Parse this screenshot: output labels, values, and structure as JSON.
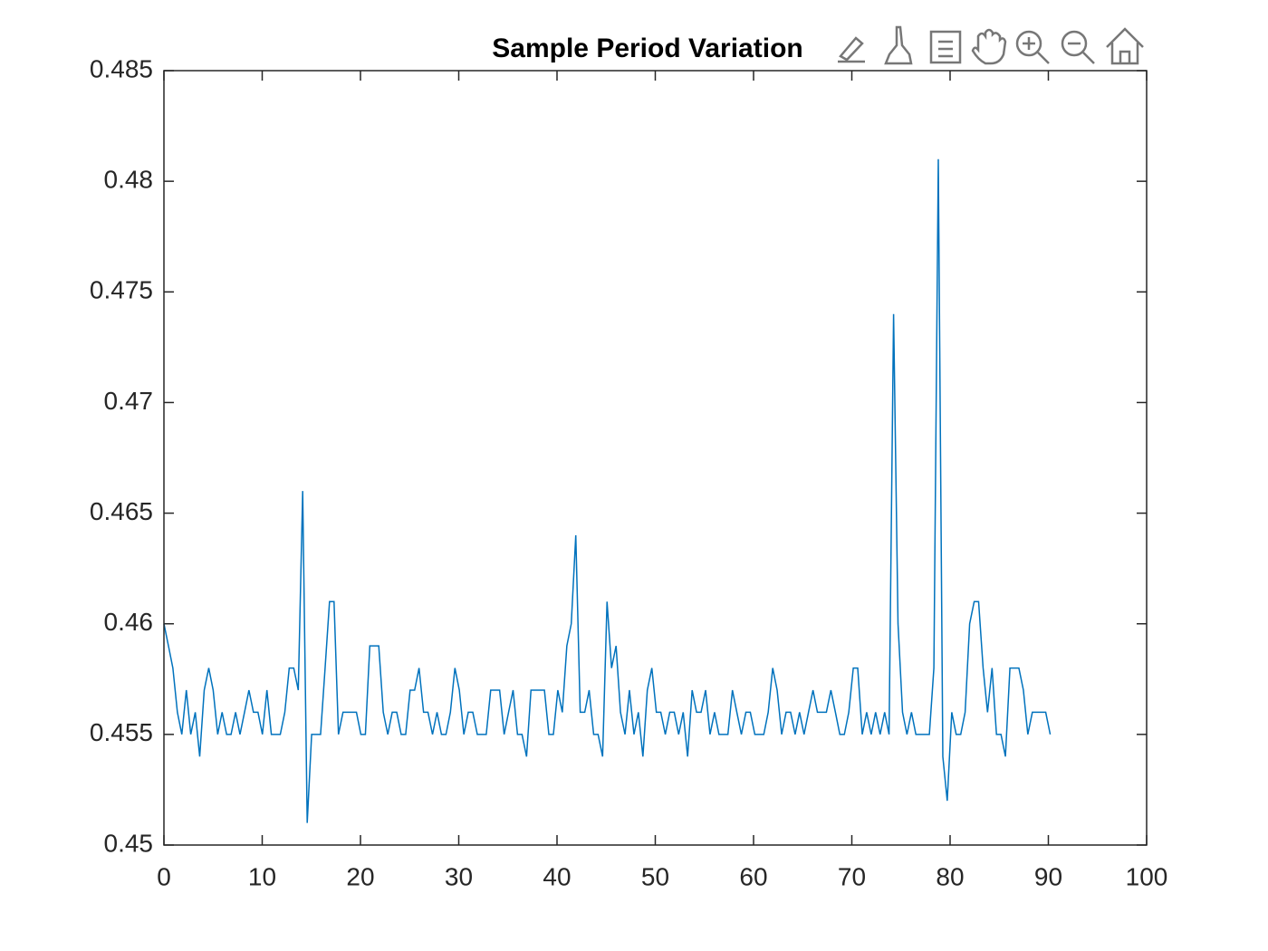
{
  "chart_data": {
    "type": "line",
    "title": "Sample Period Variation",
    "xlim": [
      0,
      100
    ],
    "xticks": [
      0,
      10,
      20,
      30,
      40,
      50,
      60,
      70,
      80,
      90,
      100
    ],
    "ylim": [
      0.45,
      0.485
    ],
    "yticks": [
      0.45,
      0.455,
      0.46,
      0.465,
      0.47,
      0.475,
      0.48,
      0.485
    ],
    "grid": false,
    "series": [
      {
        "color": "#0072bd",
        "x": [
          0,
          0.46,
          0.91,
          1.37,
          1.82,
          2.28,
          2.73,
          3.19,
          3.64,
          4.1,
          4.56,
          5.01,
          5.47,
          5.92,
          6.38,
          6.83,
          7.29,
          7.74,
          8.2,
          8.65,
          9.11,
          9.57,
          10.02,
          10.48,
          10.93,
          11.39,
          11.84,
          12.3,
          12.75,
          13.21,
          13.67,
          14.12,
          14.58,
          15.03,
          15.49,
          15.94,
          16.4,
          16.85,
          17.31,
          17.76,
          18.22,
          18.68,
          19.13,
          19.59,
          20.04,
          20.5,
          20.95,
          21.41,
          21.86,
          22.32,
          22.78,
          23.23,
          23.69,
          24.14,
          24.6,
          25.05,
          25.51,
          25.96,
          26.42,
          26.87,
          27.33,
          27.79,
          28.24,
          28.7,
          29.15,
          29.61,
          30.06,
          30.52,
          30.97,
          31.43,
          31.89,
          32.34,
          32.8,
          33.25,
          33.71,
          34.16,
          34.62,
          35.07,
          35.53,
          35.98,
          36.44,
          36.9,
          37.35,
          37.81,
          38.26,
          38.72,
          39.17,
          39.63,
          40.08,
          40.54,
          41.0,
          41.45,
          41.91,
          42.36,
          42.82,
          43.27,
          43.73,
          44.18,
          44.64,
          45.09,
          45.55,
          46.01,
          46.46,
          46.92,
          47.37,
          47.83,
          48.28,
          48.74,
          49.19,
          49.65,
          50.11,
          50.56,
          51.02,
          51.47,
          51.93,
          52.38,
          52.84,
          53.29,
          53.75,
          54.2,
          54.66,
          55.12,
          55.57,
          56.03,
          56.48,
          56.94,
          57.39,
          57.85,
          58.3,
          58.76,
          59.22,
          59.67,
          60.13,
          60.58,
          61.04,
          61.49,
          61.95,
          62.4,
          62.86,
          63.31,
          63.77,
          64.23,
          64.68,
          65.14,
          65.59,
          66.05,
          66.5,
          66.96,
          67.41,
          67.87,
          68.33,
          68.78,
          69.24,
          69.69,
          70.15,
          70.6,
          71.06,
          71.51,
          71.97,
          72.42,
          72.88,
          73.34,
          73.79,
          74.25,
          74.7,
          75.16,
          75.61,
          76.07,
          76.52,
          76.98,
          77.44,
          77.89,
          78.35,
          78.8,
          79.26,
          79.71,
          80.17,
          80.62,
          81.08,
          81.53,
          81.99,
          82.45,
          82.9,
          83.36,
          83.81,
          84.27,
          84.72,
          85.18,
          85.63,
          86.09,
          86.55,
          87.0,
          87.46,
          87.91,
          88.37,
          88.82,
          89.28,
          89.73,
          90.19
        ],
        "values": [
          0.46,
          0.459,
          0.458,
          0.456,
          0.455,
          0.457,
          0.455,
          0.456,
          0.454,
          0.457,
          0.458,
          0.457,
          0.455,
          0.456,
          0.455,
          0.455,
          0.456,
          0.455,
          0.456,
          0.457,
          0.456,
          0.456,
          0.455,
          0.457,
          0.455,
          0.455,
          0.455,
          0.456,
          0.458,
          0.458,
          0.457,
          0.466,
          0.451,
          0.455,
          0.455,
          0.455,
          0.458,
          0.461,
          0.461,
          0.455,
          0.456,
          0.456,
          0.456,
          0.456,
          0.455,
          0.455,
          0.459,
          0.459,
          0.459,
          0.456,
          0.455,
          0.456,
          0.456,
          0.455,
          0.455,
          0.457,
          0.457,
          0.458,
          0.456,
          0.456,
          0.455,
          0.456,
          0.455,
          0.455,
          0.456,
          0.458,
          0.457,
          0.455,
          0.456,
          0.456,
          0.455,
          0.455,
          0.455,
          0.457,
          0.457,
          0.457,
          0.455,
          0.456,
          0.457,
          0.455,
          0.455,
          0.454,
          0.457,
          0.457,
          0.457,
          0.457,
          0.455,
          0.455,
          0.457,
          0.456,
          0.459,
          0.46,
          0.464,
          0.456,
          0.456,
          0.457,
          0.455,
          0.455,
          0.454,
          0.461,
          0.458,
          0.459,
          0.456,
          0.455,
          0.457,
          0.455,
          0.456,
          0.454,
          0.457,
          0.458,
          0.456,
          0.456,
          0.455,
          0.456,
          0.456,
          0.455,
          0.456,
          0.454,
          0.457,
          0.456,
          0.456,
          0.457,
          0.455,
          0.456,
          0.455,
          0.455,
          0.455,
          0.457,
          0.456,
          0.455,
          0.456,
          0.456,
          0.455,
          0.455,
          0.455,
          0.456,
          0.458,
          0.457,
          0.455,
          0.456,
          0.456,
          0.455,
          0.456,
          0.455,
          0.456,
          0.457,
          0.456,
          0.456,
          0.456,
          0.457,
          0.456,
          0.455,
          0.455,
          0.456,
          0.458,
          0.458,
          0.455,
          0.456,
          0.455,
          0.456,
          0.455,
          0.456,
          0.455,
          0.474,
          0.46,
          0.456,
          0.455,
          0.456,
          0.455,
          0.455,
          0.455,
          0.455,
          0.458,
          0.481,
          0.454,
          0.452,
          0.456,
          0.455,
          0.455,
          0.456,
          0.46,
          0.461,
          0.461,
          0.458,
          0.456,
          0.458,
          0.455,
          0.455,
          0.454,
          0.458,
          0.458,
          0.458,
          0.457,
          0.455,
          0.456,
          0.456,
          0.456,
          0.456,
          0.455
        ]
      }
    ]
  }
}
